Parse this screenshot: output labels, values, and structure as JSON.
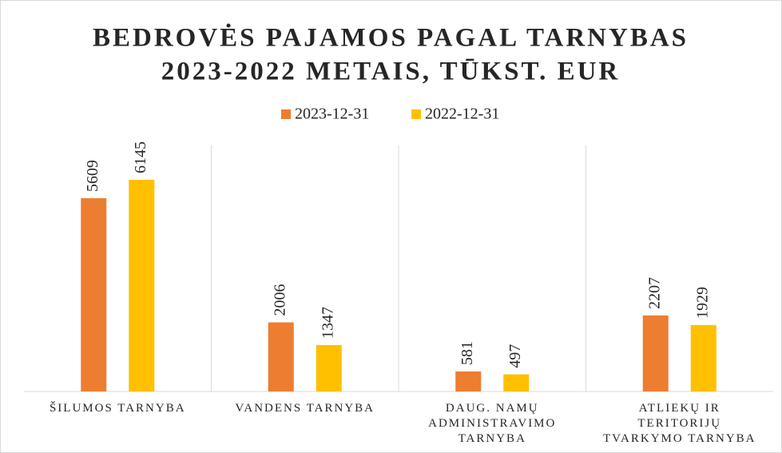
{
  "chart_data": {
    "type": "bar",
    "title": [
      "BEDROVĖS PAJAMOS PAGAL TARNYBAS",
      "2023-2022 METAIS, TŪKST. EUR"
    ],
    "categories": [
      "ŠILUMOS TARNYBA",
      "VANDENS TARNYBA",
      "DAUG. NAMŲ ADMINISTRAVIMO TARNYBA",
      "ATLIEKŲ IR TERITORIJŲ TVARKYMO TARNYBA"
    ],
    "series": [
      {
        "name": "2023-12-31",
        "color": "#ed7d31",
        "values": [
          5609,
          2006,
          581,
          2207
        ]
      },
      {
        "name": "2022-12-31",
        "color": "#ffc000",
        "values": [
          6145,
          1347,
          497,
          1929
        ]
      }
    ],
    "legend": "top"
  }
}
